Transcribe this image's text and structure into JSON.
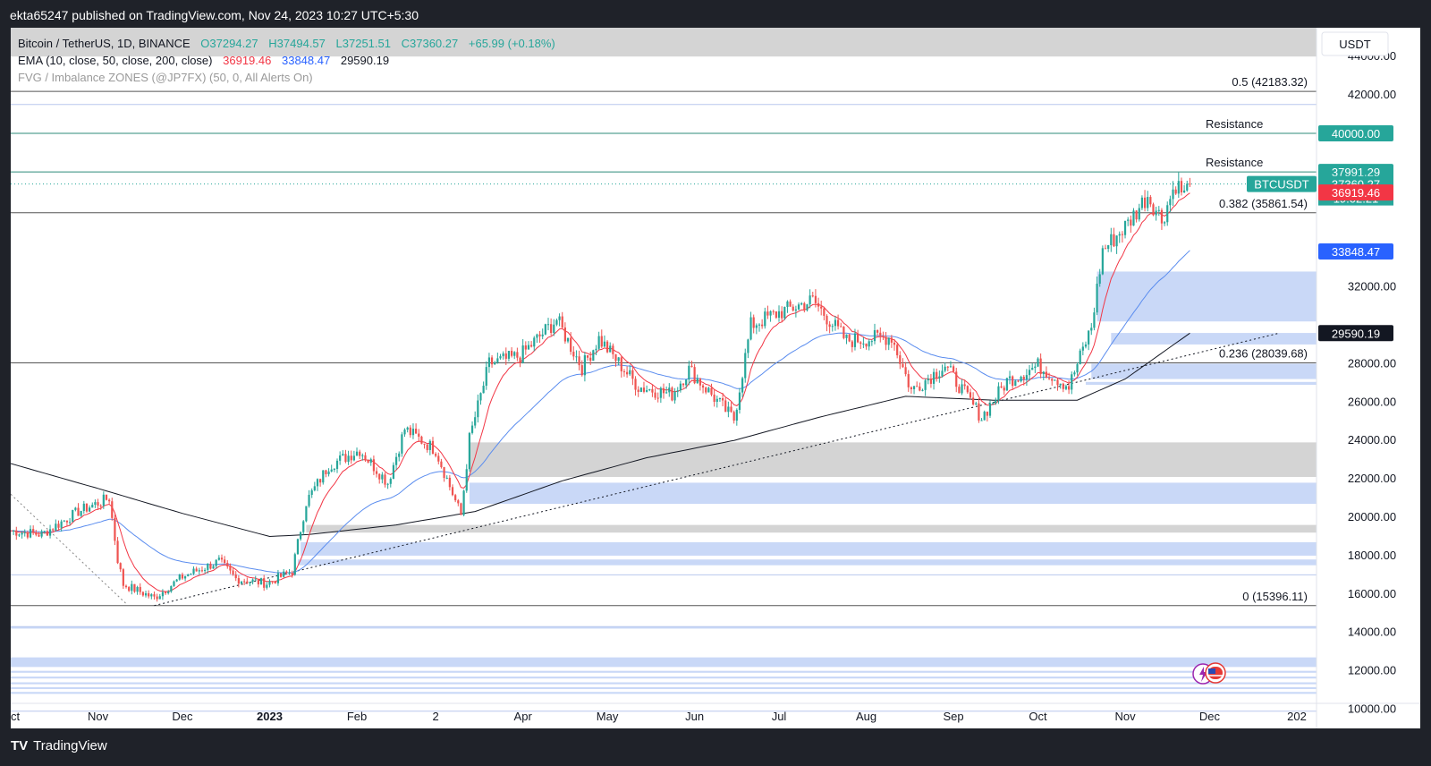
{
  "header": {
    "published": "ekta65247 published on TradingView.com, Nov 24, 2023 10:27 UTC+5:30"
  },
  "footer": {
    "brand": "TradingView",
    "logo": "TV"
  },
  "legend": {
    "symbol": "Bitcoin / TetherUS, 1D, BINANCE",
    "o_label": "O",
    "o": "37294.27",
    "h_label": "H",
    "h": "37494.57",
    "l_label": "L",
    "l": "37251.51",
    "c_label": "C",
    "c": "37360.27",
    "change": "+65.99 (+0.18%)",
    "ema_label": "EMA (10, close, 50, close, 200, close)",
    "ema10": "36919.46",
    "ema50": "33848.47",
    "ema200": "29590.19",
    "fvg_label": "FVG / Imbalance ZONES (@JP7FX) (50, 0, All Alerts On)"
  },
  "currency": "USDT",
  "colors": {
    "up": "#26a69a",
    "down": "#ef5350",
    "ema10": "#f23645",
    "ema50": "#2962ff",
    "ema200": "#131722",
    "ema50_line": "#5b8def",
    "resistance": "#2e8b7a",
    "fvg_blue": "#c9d8f7",
    "fvg_gray": "#d4d4d4"
  },
  "chart_data": {
    "type": "candlestick",
    "title": "Bitcoin / TetherUS, 1D, BINANCE",
    "ylim": [
      9000,
      45500
    ],
    "x_range": [
      "2022-10-01",
      "2024-01-08"
    ],
    "y_ticks": [
      "44000.00",
      "42000.00",
      "32000.00",
      "28000.00",
      "26000.00",
      "24000.00",
      "22000.00",
      "20000.00",
      "18000.00",
      "16000.00",
      "14000.00",
      "12000.00",
      "10000.00"
    ],
    "x_ticks": [
      {
        "label": "Oct",
        "date": "2022-10-01"
      },
      {
        "label": "Nov",
        "date": "2022-11-01"
      },
      {
        "label": "Dec",
        "date": "2022-12-01"
      },
      {
        "label": "2023",
        "date": "2023-01-01",
        "bold": true
      },
      {
        "label": "Feb",
        "date": "2023-02-01"
      },
      {
        "label": "2",
        "date": "2023-03-01"
      },
      {
        "label": "Apr",
        "date": "2023-04-01"
      },
      {
        "label": "May",
        "date": "2023-05-01"
      },
      {
        "label": "Jun",
        "date": "2023-06-01"
      },
      {
        "label": "Jul",
        "date": "2023-07-01"
      },
      {
        "label": "Aug",
        "date": "2023-08-01"
      },
      {
        "label": "Sep",
        "date": "2023-09-01"
      },
      {
        "label": "Oct",
        "date": "2023-10-01"
      },
      {
        "label": "Nov",
        "date": "2023-11-01"
      },
      {
        "label": "Dec",
        "date": "2023-12-01"
      },
      {
        "label": "202",
        "date": "2024-01-01"
      }
    ],
    "price_path": [
      [
        "2022-10-01",
        19300
      ],
      [
        "2022-10-12",
        19100
      ],
      [
        "2022-10-25",
        20300
      ],
      [
        "2022-11-05",
        21000
      ],
      [
        "2022-11-08",
        17800
      ],
      [
        "2022-11-10",
        16500
      ],
      [
        "2022-11-21",
        15800
      ],
      [
        "2022-12-01",
        16900
      ],
      [
        "2022-12-14",
        17700
      ],
      [
        "2022-12-20",
        16800
      ],
      [
        "2022-12-31",
        16550
      ],
      [
        "2023-01-09",
        17200
      ],
      [
        "2023-01-14",
        20800
      ],
      [
        "2023-01-22",
        22700
      ],
      [
        "2023-02-02",
        23500
      ],
      [
        "2023-02-12",
        21800
      ],
      [
        "2023-02-18",
        24600
      ],
      [
        "2023-03-01",
        23500
      ],
      [
        "2023-03-10",
        20100
      ],
      [
        "2023-03-13",
        24100
      ],
      [
        "2023-03-20",
        28000
      ],
      [
        "2023-03-31",
        28400
      ],
      [
        "2023-04-13",
        30300
      ],
      [
        "2023-04-22",
        27800
      ],
      [
        "2023-04-28",
        29300
      ],
      [
        "2023-05-12",
        26800
      ],
      [
        "2023-05-24",
        26400
      ],
      [
        "2023-05-30",
        27700
      ],
      [
        "2023-06-10",
        25900
      ],
      [
        "2023-06-15",
        25100
      ],
      [
        "2023-06-21",
        30000
      ],
      [
        "2023-06-30",
        30600
      ],
      [
        "2023-07-13",
        31300
      ],
      [
        "2023-07-25",
        29200
      ],
      [
        "2023-08-10",
        29400
      ],
      [
        "2023-08-17",
        26600
      ],
      [
        "2023-08-29",
        27900
      ],
      [
        "2023-09-11",
        25200
      ],
      [
        "2023-09-20",
        27100
      ],
      [
        "2023-10-01",
        27900
      ],
      [
        "2023-10-12",
        26800
      ],
      [
        "2023-10-20",
        29900
      ],
      [
        "2023-10-24",
        33900
      ],
      [
        "2023-11-02",
        35300
      ],
      [
        "2023-11-09",
        36800
      ],
      [
        "2023-11-14",
        35500
      ],
      [
        "2023-11-19",
        37400
      ],
      [
        "2023-11-22",
        36800
      ],
      [
        "2023-11-24",
        37360
      ]
    ],
    "ema_series": [
      {
        "name": "EMA 10",
        "value": 36919.46
      },
      {
        "name": "EMA 50",
        "value": 33848.47
      },
      {
        "name": "EMA 200",
        "value": 29590.19
      }
    ],
    "ema200_path": [
      [
        "2022-10-01",
        22800
      ],
      [
        "2022-11-01",
        21500
      ],
      [
        "2022-12-01",
        20200
      ],
      [
        "2023-01-01",
        19000
      ],
      [
        "2023-01-15",
        19100
      ],
      [
        "2023-02-15",
        19600
      ],
      [
        "2023-03-15",
        20300
      ],
      [
        "2023-04-15",
        21900
      ],
      [
        "2023-05-15",
        23100
      ],
      [
        "2023-06-15",
        24000
      ],
      [
        "2023-07-15",
        25200
      ],
      [
        "2023-08-15",
        26300
      ],
      [
        "2023-09-15",
        26100
      ],
      [
        "2023-10-15",
        26100
      ],
      [
        "2023-11-01",
        27200
      ],
      [
        "2023-11-24",
        29590
      ]
    ],
    "fib_levels": [
      {
        "label": "0.5 (42183.32)",
        "price": 42183.32
      },
      {
        "label": "0.382 (35861.54)",
        "price": 35861.54
      },
      {
        "label": "0.236 (28039.68)",
        "price": 28039.68
      },
      {
        "label": "0 (15396.11)",
        "price": 15396.11
      }
    ],
    "resistance_levels": [
      {
        "label": "Resistance",
        "price": 40000.0,
        "tag": "40000.00"
      },
      {
        "label": "Resistance",
        "price": 37991.29,
        "tag": "37991.29"
      }
    ],
    "fvg_zones": [
      {
        "from": 44000,
        "to": 45500,
        "color": "gray",
        "start": "2022-10-01"
      },
      {
        "from": 30200,
        "to": 32800,
        "color": "blue",
        "start": "2023-10-22"
      },
      {
        "from": 29000,
        "to": 29600,
        "color": "blue",
        "start": "2023-10-27"
      },
      {
        "from": 27200,
        "to": 28000,
        "color": "blue",
        "start": "2023-10-20"
      },
      {
        "from": 26900,
        "to": 27050,
        "color": "blue",
        "start": "2023-10-18"
      },
      {
        "from": 22100,
        "to": 23900,
        "color": "gray",
        "start": "2023-03-13"
      },
      {
        "from": 20700,
        "to": 21800,
        "color": "blue",
        "start": "2023-03-13"
      },
      {
        "from": 19200,
        "to": 19600,
        "color": "gray",
        "start": "2023-01-14"
      },
      {
        "from": 18000,
        "to": 18700,
        "color": "blue",
        "start": "2023-01-12"
      },
      {
        "from": 17500,
        "to": 17800,
        "color": "blue",
        "start": "2023-01-11"
      },
      {
        "from": 14200,
        "to": 14300,
        "color": "blue",
        "start": "2022-10-01"
      },
      {
        "from": 12200,
        "to": 12700,
        "color": "blue",
        "start": "2022-10-01"
      },
      {
        "from": 11900,
        "to": 12000,
        "color": "blue",
        "start": "2022-10-01"
      },
      {
        "from": 11600,
        "to": 11700,
        "color": "blue",
        "start": "2022-10-01"
      },
      {
        "from": 11300,
        "to": 11400,
        "color": "blue",
        "start": "2022-10-01"
      },
      {
        "from": 11050,
        "to": 11150,
        "color": "blue",
        "start": "2022-10-01"
      },
      {
        "from": 10800,
        "to": 10900,
        "color": "blue",
        "start": "2022-10-01"
      }
    ],
    "thin_lines": [
      {
        "price": 41500,
        "start": "2022-10-01"
      },
      {
        "price": 17000,
        "start": "2022-10-01"
      },
      {
        "price": 14300,
        "start": "2022-10-01"
      },
      {
        "price": 9900,
        "start": "2022-10-01"
      }
    ],
    "trendline": [
      [
        "2022-11-21",
        15400
      ],
      [
        "2023-12-26",
        29600
      ]
    ],
    "decline_line": [
      [
        "2022-10-01",
        21200
      ],
      [
        "2022-11-11",
        15500
      ]
    ],
    "price_tags": [
      {
        "label": "40000.00",
        "price": 40000.0,
        "color": "#26a69a"
      },
      {
        "label": "37991.29",
        "price": 37991.29,
        "color": "#26a69a"
      },
      {
        "label": "37360.27",
        "price": 37360.27,
        "color": "#26a69a",
        "symbol": "BTCUSDT",
        "timer": "19:02:21"
      },
      {
        "label": "36919.46",
        "price": 36919.46,
        "color": "#f23645"
      },
      {
        "label": "33848.47",
        "price": 33848.47,
        "color": "#2962ff"
      },
      {
        "label": "29590.19",
        "price": 29590.19,
        "color": "#131722"
      }
    ]
  }
}
